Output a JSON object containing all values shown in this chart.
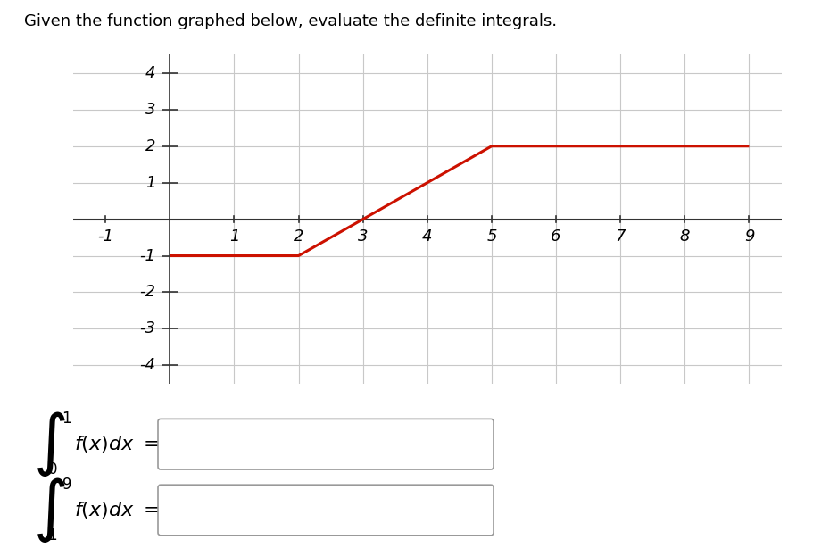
{
  "title": "Given the function graphed below, evaluate the definite integrals.",
  "title_fontsize": 13,
  "xlim": [
    -1.5,
    9.5
  ],
  "ylim": [
    -4.5,
    4.5
  ],
  "xticks": [
    1,
    2,
    3,
    4,
    5,
    6,
    7,
    8,
    9
  ],
  "yticks": [
    -4,
    -3,
    -2,
    -1,
    1,
    2,
    3,
    4
  ],
  "background_color": "#ffffff",
  "grid_color": "#c8c8c8",
  "axis_color": "#333333",
  "line_color": "#cc1100",
  "line_width": 2.2,
  "function_points_x": [
    0.0,
    2.0,
    5.0,
    9.0
  ],
  "function_points_y": [
    -1.0,
    -1.0,
    2.0,
    2.0
  ],
  "box_edge_color": "#aaaaaa",
  "xlabel_neg1_x": -1,
  "xlabel_neg1_label": "-1"
}
